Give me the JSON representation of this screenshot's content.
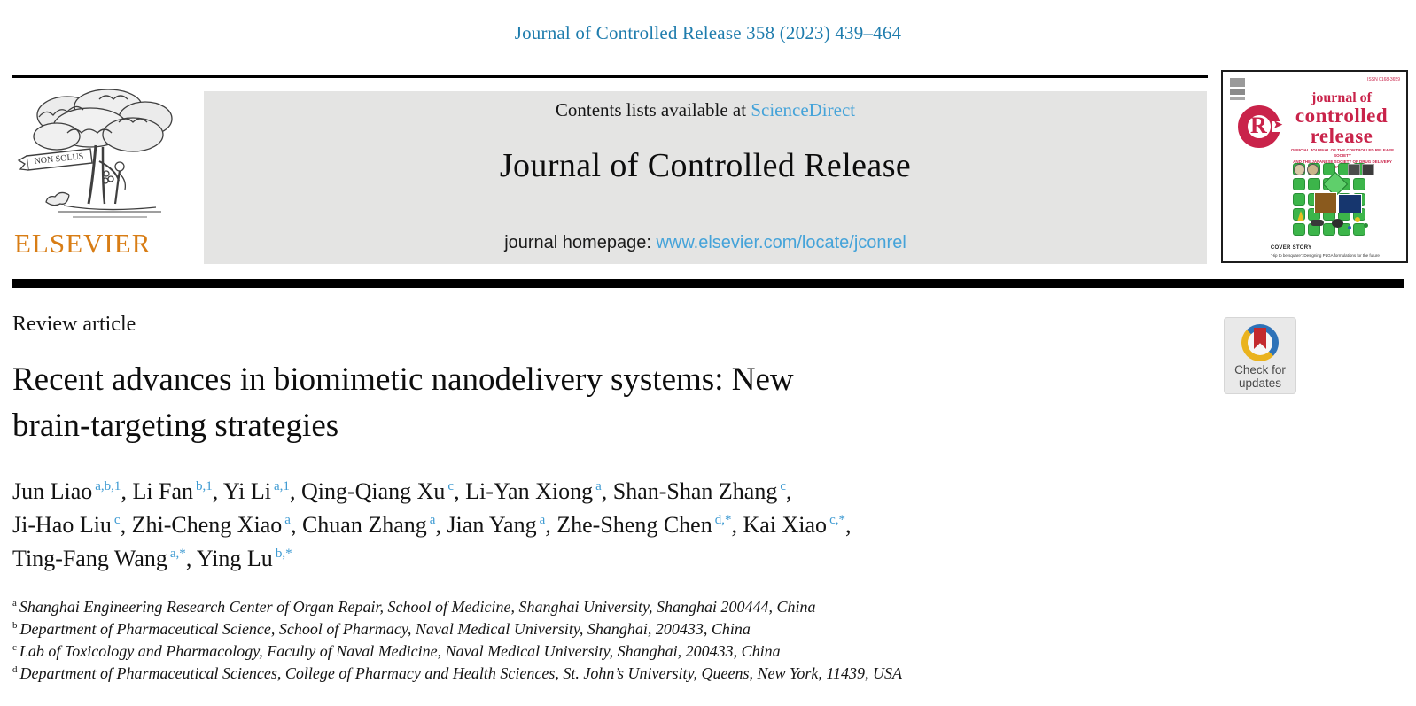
{
  "page": {
    "citation": "Journal of Controlled Release 358 (2023) 439–464"
  },
  "header": {
    "contents_prefix": "Contents lists available at ",
    "contents_link": "ScienceDirect",
    "journal_title": "Journal of Controlled Release",
    "homepage_prefix": "journal homepage: ",
    "homepage_link": "www.elsevier.com/locate/jconrel",
    "elsevier_logo": {
      "wordmark": "ELSEVIER",
      "ribbon_text": "NON SOLUS"
    }
  },
  "cover": {
    "issn": "ISSN 0168-3659",
    "title_line1": "journal of",
    "title_line2": "controlled",
    "title_line3": "release",
    "logo_letter": "R",
    "logo_arrow": "➤",
    "society_line1": "OFFICIAL JOURNAL OF THE CONTROLLED RELEASE SOCIETY",
    "society_line2": "AND THE JAPANESE SOCIETY OF DRUG DELIVERY SYSTEM",
    "cover_story_heading": "COVER STORY",
    "cover_story_caption": "‘Hip to be square’: Designing PLGA formulations for the future"
  },
  "article": {
    "type_label": "Review article",
    "title_line1": "Recent advances in biomimetic nanodelivery systems: New",
    "title_line2": "brain-targeting strategies"
  },
  "authors": {
    "lines": [
      [
        {
          "name": "Jun Liao",
          "sup": "a,b,1",
          "sep": ", "
        },
        {
          "name": "Li Fan",
          "sup": "b,1",
          "sep": ", "
        },
        {
          "name": "Yi Li",
          "sup": "a,1",
          "sep": ", "
        },
        {
          "name": "Qing-Qiang Xu",
          "sup": "c",
          "sep": ", "
        },
        {
          "name": "Li-Yan Xiong",
          "sup": "a",
          "sep": ", "
        },
        {
          "name": "Shan-Shan Zhang",
          "sup": "c",
          "sep": ","
        }
      ],
      [
        {
          "name": "Ji-Hao Liu",
          "sup": "c",
          "sep": ", "
        },
        {
          "name": "Zhi-Cheng Xiao",
          "sup": "a",
          "sep": ", "
        },
        {
          "name": "Chuan Zhang",
          "sup": "a",
          "sep": ", "
        },
        {
          "name": "Jian Yang",
          "sup": "a",
          "sep": ", "
        },
        {
          "name": "Zhe-Sheng Chen",
          "sup": "d,*",
          "sep": ", "
        },
        {
          "name": "Kai Xiao",
          "sup": "c,*",
          "sep": ","
        }
      ],
      [
        {
          "name": "Ting-Fang Wang",
          "sup": "a,*",
          "sep": ", "
        },
        {
          "name": "Ying Lu",
          "sup": "b,*",
          "sep": ""
        }
      ]
    ]
  },
  "affiliations": [
    {
      "sup": "a",
      "text": "Shanghai Engineering Research Center of Organ Repair, School of Medicine, Shanghai University, Shanghai 200444, China"
    },
    {
      "sup": "b",
      "text": "Department of Pharmaceutical Science, School of Pharmacy, Naval Medical University, Shanghai, 200433, China"
    },
    {
      "sup": "c",
      "text": "Lab of Toxicology and Pharmacology, Faculty of Naval Medicine, Naval Medical University, Shanghai, 200433, China"
    },
    {
      "sup": "d",
      "text": "Department of Pharmaceutical Sciences, College of Pharmacy and Health Sciences, St. John’s University, Queens, New York, 11439, USA"
    }
  ],
  "badge": {
    "line1": "Check for",
    "line2": "updates"
  },
  "colors": {
    "citation_blue": "#1e7cad",
    "link_blue": "#45a3d9",
    "superscript_blue": "#3d9ad2",
    "elsevier_orange": "#d87d15",
    "banner_gray": "#e4e4e3",
    "cover_crimson": "#c9234a",
    "cover_green": "#3cb54a",
    "badge_blue": "#2e72b8",
    "badge_yellow": "#eab31e",
    "badge_red": "#c32a2e"
  }
}
